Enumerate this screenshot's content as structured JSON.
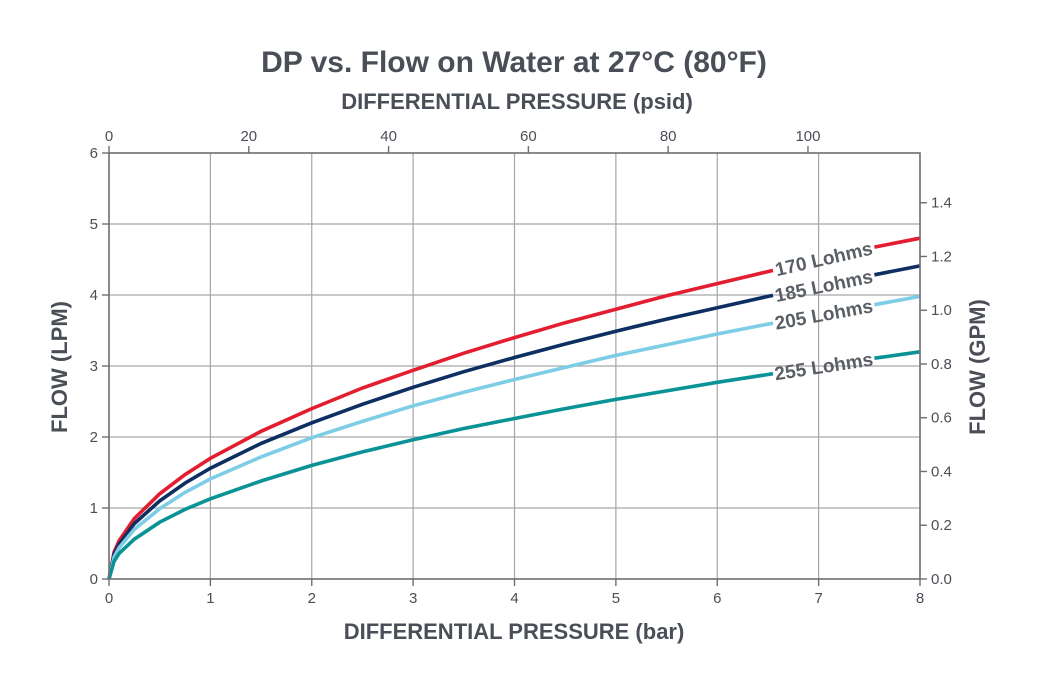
{
  "chart_data": {
    "type": "line",
    "title": "DP vs. Flow on Water at 27°C (80°F)",
    "xlabel": "DIFFERENTIAL PRESSURE (bar)",
    "x2label": "DIFFERENTIAL PRESSURE (psid)",
    "ylabel": "FLOW (LPM)",
    "y2label": "FLOW (GPM)",
    "xlim": [
      0,
      8
    ],
    "ylim": [
      0,
      6
    ],
    "x2lim": [
      0,
      116.03
    ],
    "y2lim": [
      0,
      1.585
    ],
    "xticks": [
      "0",
      "1",
      "2",
      "3",
      "4",
      "5",
      "6",
      "7",
      "8"
    ],
    "yticks": [
      "0",
      "1",
      "2",
      "3",
      "4",
      "5",
      "6"
    ],
    "x2ticks": [
      "0",
      "20",
      "40",
      "60",
      "80",
      "100"
    ],
    "y2ticks": [
      "0.0",
      "0.2",
      "0.4",
      "0.6",
      "0.8",
      "1.0",
      "1.2",
      "1.4"
    ],
    "grid": true,
    "x": [
      0,
      0.05,
      0.1,
      0.25,
      0.5,
      0.75,
      1,
      1.5,
      2,
      2.5,
      3,
      3.5,
      4,
      4.5,
      5,
      5.5,
      6,
      6.5,
      7,
      7.5,
      8
    ],
    "series": [
      {
        "name": "170 Lohms",
        "color": "#e31e30",
        "values": [
          0,
          0.38,
          0.54,
          0.85,
          1.2,
          1.47,
          1.7,
          2.08,
          2.4,
          2.69,
          2.94,
          3.18,
          3.4,
          3.61,
          3.8,
          3.99,
          4.16,
          4.33,
          4.5,
          4.66,
          4.8
        ]
      },
      {
        "name": "185 Lohms",
        "color": "#0d2f62",
        "values": [
          0,
          0.35,
          0.49,
          0.78,
          1.1,
          1.35,
          1.56,
          1.91,
          2.2,
          2.46,
          2.7,
          2.92,
          3.12,
          3.31,
          3.49,
          3.66,
          3.82,
          3.98,
          4.12,
          4.27,
          4.41
        ]
      },
      {
        "name": "205 Lohms",
        "color": "#7dcde6",
        "values": [
          0,
          0.31,
          0.44,
          0.7,
          0.99,
          1.22,
          1.41,
          1.72,
          1.99,
          2.22,
          2.44,
          2.63,
          2.81,
          2.98,
          3.15,
          3.3,
          3.45,
          3.59,
          3.72,
          3.85,
          3.98
        ]
      },
      {
        "name": "255 Lohms",
        "color": "#0a9396",
        "values": [
          0,
          0.25,
          0.36,
          0.56,
          0.8,
          0.98,
          1.13,
          1.38,
          1.6,
          1.79,
          1.96,
          2.12,
          2.26,
          2.4,
          2.53,
          2.65,
          2.77,
          2.88,
          2.99,
          3.1,
          3.2
        ]
      }
    ],
    "legend": "inline labels near right end of each line"
  }
}
